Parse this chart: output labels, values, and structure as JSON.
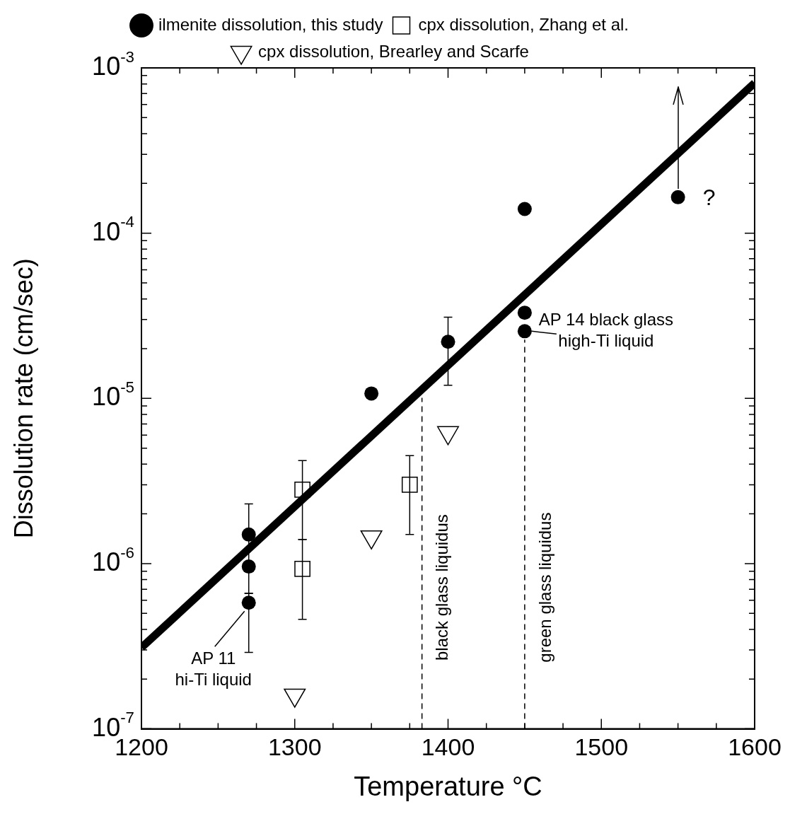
{
  "chart_data": {
    "type": "scatter",
    "xlabel": "Temperature °C",
    "ylabel": "Dissolution rate (cm/sec)",
    "log": "y",
    "xlim": [
      1200,
      1600
    ],
    "xticks": [
      1200,
      1300,
      1400,
      1500,
      1600
    ],
    "ylim": [
      1e-07,
      0.001
    ],
    "yticks": [
      {
        "value": 1e-07,
        "label": "10$^{-7}$"
      },
      {
        "value": 1e-06,
        "label": "10$^{-6}$"
      },
      {
        "value": 1e-05,
        "label": "10$^{-5}$"
      },
      {
        "value": 0.0001,
        "label": "10$^{-4}$"
      },
      {
        "value": 0.001,
        "label": "10$^{-3}$"
      }
    ],
    "grid": false,
    "legend": "top",
    "series": [
      {
        "name": "ilmenite dissolution, this study",
        "type": "scatter",
        "marker": "circle",
        "color": "#000000",
        "x": [
          1270,
          1270,
          1270,
          1350,
          1400,
          1450,
          1450,
          1450,
          1550
        ],
        "values": [
          1.5e-06,
          9.6e-07,
          5.8e-07,
          1.07e-05,
          2.2e-05,
          0.00014,
          3.3e-05,
          2.55e-05,
          0.000165
        ],
        "errors": [
          [
            6.6e-07,
            2.3e-06
          ],
          null,
          [
            2.9e-07,
            6.6e-07
          ],
          null,
          [
            1.2e-05,
            3.1e-05
          ],
          null,
          null,
          null,
          null
        ]
      },
      {
        "type": "line",
        "marker": "none",
        "color": "#000000",
        "x": [
          1200,
          1600
        ],
        "values": [
          3.1e-07,
          0.00081
        ]
      },
      {
        "name": "cpx dissolution, Zhang et al.",
        "type": "scatter",
        "marker": "square",
        "color": "#000000",
        "x": [
          1305,
          1305,
          1375
        ],
        "values": [
          2.8e-06,
          9.3e-07,
          3e-06
        ],
        "errors": [
          [
            1.4e-06,
            4.2e-06
          ],
          [
            4.6e-07,
            1.4e-06
          ],
          [
            1.5e-06,
            4.5e-06
          ]
        ]
      },
      {
        "name": "cpx dissolution, Brearley and Scarfe",
        "type": "scatter",
        "marker": "triangle",
        "color": "#000000",
        "x": [
          1300,
          1350,
          1400
        ],
        "values": [
          1.6e-07,
          1.45e-06,
          6.2e-06
        ]
      }
    ],
    "ref_lines": [
      {
        "axis": "x",
        "value": 1383,
        "label": "black glass liquidus",
        "line_style": "dashed",
        "color": "#000000"
      },
      {
        "axis": "x",
        "value": 1450,
        "label": "green glass liquidus",
        "line_style": "dashed",
        "color": "#000000"
      }
    ],
    "annotations": [
      {
        "text": "AP 11\nhi-Ti liquid",
        "x": 1270,
        "y": 5.8e-07
      },
      {
        "text": "AP 14 black glass\nhigh-Ti liquid",
        "x": 1450,
        "y": 2.55e-05
      },
      {
        "text": "?",
        "x": 1550,
        "y": 0.000165
      }
    ]
  }
}
